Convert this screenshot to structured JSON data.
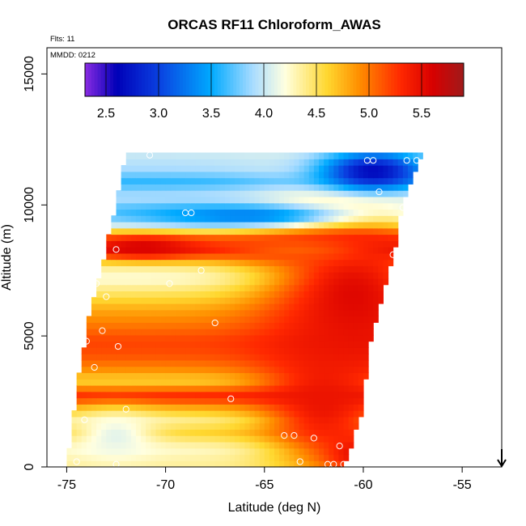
{
  "chart_data": {
    "type": "heatmap",
    "title": "ORCAS RF11 Chloroform_AWAS",
    "annotations": [
      "Flts: 11",
      "MMDD: 0212"
    ],
    "xlabel": "Latitude (deg N)",
    "ylabel": "Altitude (m)",
    "xlim": [
      -76,
      -53
    ],
    "ylim": [
      0,
      16000
    ],
    "x_ticks": [
      -75,
      -70,
      -65,
      -60,
      -55
    ],
    "x_tick_labels": [
      "-75",
      "-70",
      "-65",
      "-60",
      "-55"
    ],
    "y_ticks": [
      0,
      5000,
      10000,
      15000
    ],
    "y_tick_labels": [
      "0",
      "5000",
      "10000",
      "15000"
    ],
    "colorbar": {
      "range": [
        2.3,
        5.9
      ],
      "ticks": [
        2.5,
        3.0,
        3.5,
        4.0,
        4.5,
        5.0,
        5.5
      ],
      "tick_labels": [
        "2.5",
        "3.0",
        "3.5",
        "4.0",
        "4.5",
        "5.0",
        "5.5"
      ],
      "colors": [
        "#8a2be2",
        "#0000b8",
        "#0a40e0",
        "#00aaff",
        "#aadcff",
        "#ffffe0",
        "#ffd830",
        "#ff9000",
        "#ff2800",
        "#d80000",
        "#a01a1a"
      ],
      "color_positions": [
        2.3,
        2.6,
        3.0,
        3.5,
        3.9,
        4.2,
        4.6,
        4.9,
        5.3,
        5.6,
        5.9
      ]
    },
    "field": {
      "lat_range": [
        -75.0,
        -57.0
      ],
      "alt_range": [
        0,
        12000
      ],
      "left_edge": [
        [
          0,
          -75.0
        ],
        [
          3000,
          -74.5
        ],
        [
          6000,
          -73.8
        ],
        [
          9000,
          -72.8
        ],
        [
          12000,
          -72.0
        ]
      ],
      "right_edge": [
        [
          0,
          -61.0
        ],
        [
          2000,
          -60.1
        ],
        [
          5000,
          -59.6
        ],
        [
          8000,
          -58.5
        ],
        [
          10000,
          -58.0
        ],
        [
          12000,
          -57.0
        ]
      ],
      "bands": [
        {
          "alt": 200,
          "value": 4.35
        },
        {
          "alt": 700,
          "value": 4.25
        },
        {
          "alt": 1300,
          "value": 4.6
        },
        {
          "alt": 1800,
          "value": 4.4
        },
        {
          "alt": 2200,
          "value": 4.7
        },
        {
          "alt": 2700,
          "value": 5.35
        },
        {
          "alt": 3300,
          "value": 4.6
        },
        {
          "alt": 3800,
          "value": 4.95
        },
        {
          "alt": 4300,
          "value": 5.15
        },
        {
          "alt": 4800,
          "value": 5.2
        },
        {
          "alt": 5400,
          "value": 5.0
        },
        {
          "alt": 6000,
          "value": 4.8
        },
        {
          "alt": 6600,
          "value": 4.5
        },
        {
          "alt": 7200,
          "value": 4.2
        },
        {
          "alt": 7700,
          "value": 4.4
        },
        {
          "alt": 8300,
          "value": 5.45
        },
        {
          "alt": 8800,
          "value": 5.0
        },
        {
          "alt": 9300,
          "value": 3.95
        },
        {
          "alt": 9800,
          "value": 3.7
        },
        {
          "alt": 10300,
          "value": 3.95
        },
        {
          "alt": 10900,
          "value": 3.6
        },
        {
          "alt": 11400,
          "value": 3.9
        },
        {
          "alt": 11900,
          "value": 4.0
        }
      ],
      "hotspots": [
        {
          "lat": -60.5,
          "alt": 6500,
          "value": 5.55,
          "lat_radius": 4.5,
          "alt_radius": 3500
        },
        {
          "lat": -62.0,
          "alt": 2500,
          "value": 5.45,
          "lat_radius": 3.0,
          "alt_radius": 2500
        },
        {
          "lat": -60.3,
          "alt": 500,
          "value": 5.5,
          "lat_radius": 1.8,
          "alt_radius": 800
        },
        {
          "lat": -59.5,
          "alt": 11300,
          "value": 2.65,
          "lat_radius": 2.8,
          "alt_radius": 800
        },
        {
          "lat": -66.0,
          "alt": 9600,
          "value": 3.3,
          "lat_radius": 5.0,
          "alt_radius": 400
        },
        {
          "lat": -71.0,
          "alt": 8400,
          "value": 5.6,
          "lat_radius": 2.5,
          "alt_radius": 400
        },
        {
          "lat": -63.5,
          "alt": 8300,
          "value": 5.1,
          "lat_radius": 4.0,
          "alt_radius": 500
        },
        {
          "lat": -72.5,
          "alt": 1200,
          "value": 4.1,
          "lat_radius": 2.0,
          "alt_radius": 900
        }
      ]
    },
    "samples": [
      {
        "lat": -72.5,
        "alt": 8300
      },
      {
        "lat": -73.8,
        "alt": 7300
      },
      {
        "lat": -72.2,
        "alt": 11900
      },
      {
        "lat": -70.8,
        "alt": 11900
      },
      {
        "lat": -69.0,
        "alt": 9700
      },
      {
        "lat": -68.7,
        "alt": 9700
      },
      {
        "lat": -68.2,
        "alt": 7500
      },
      {
        "lat": -69.8,
        "alt": 7000
      },
      {
        "lat": -73.5,
        "alt": 7000
      },
      {
        "lat": -73.0,
        "alt": 6500
      },
      {
        "lat": -73.2,
        "alt": 5200
      },
      {
        "lat": -74.0,
        "alt": 4800
      },
      {
        "lat": -72.4,
        "alt": 4600
      },
      {
        "lat": -73.6,
        "alt": 3800
      },
      {
        "lat": -67.5,
        "alt": 5500
      },
      {
        "lat": -74.8,
        "alt": 2700
      },
      {
        "lat": -72.0,
        "alt": 2200
      },
      {
        "lat": -74.1,
        "alt": 1800
      },
      {
        "lat": -66.7,
        "alt": 2600
      },
      {
        "lat": -64.0,
        "alt": 1200
      },
      {
        "lat": -63.5,
        "alt": 1200
      },
      {
        "lat": -62.5,
        "alt": 1100
      },
      {
        "lat": -61.2,
        "alt": 800
      },
      {
        "lat": -63.2,
        "alt": 200
      },
      {
        "lat": -61.8,
        "alt": 100
      },
      {
        "lat": -61.5,
        "alt": 100
      },
      {
        "lat": -61.0,
        "alt": 100
      },
      {
        "lat": -72.5,
        "alt": 100
      },
      {
        "lat": -74.5,
        "alt": 200
      },
      {
        "lat": -59.8,
        "alt": 11700
      },
      {
        "lat": -59.5,
        "alt": 11700
      },
      {
        "lat": -57.8,
        "alt": 11700
      },
      {
        "lat": -59.2,
        "alt": 10500
      },
      {
        "lat": -58.0,
        "alt": 9900
      },
      {
        "lat": -58.5,
        "alt": 8100
      },
      {
        "lat": -57.3,
        "alt": 11700
      }
    ],
    "arrow": {
      "lat": -53.0
    }
  }
}
